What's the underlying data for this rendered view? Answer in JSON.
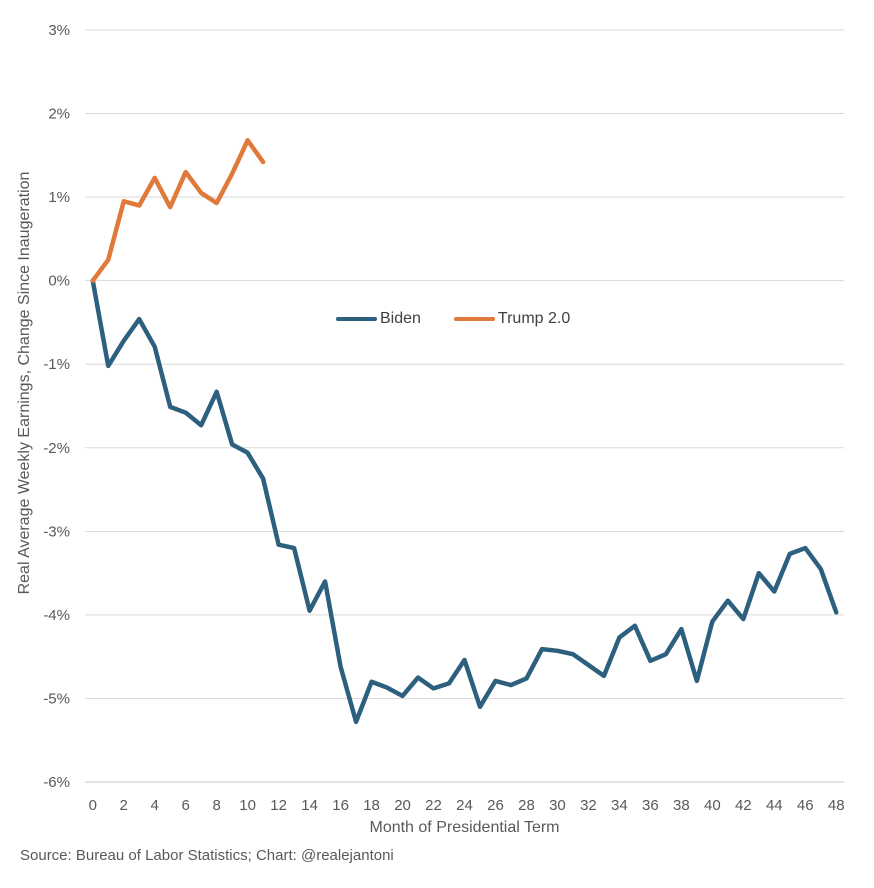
{
  "chart_data": {
    "type": "line",
    "title": "",
    "xlabel": "Month of Presidential Term",
    "ylabel": "Real Average Weekly Earnings, Change Since Inaugeration",
    "ylim": [
      -6,
      3
    ],
    "grid": true,
    "grid_color": "#d9d9d9",
    "axis_line_color": "#c6c6c6",
    "text_color": "#595959",
    "legend_text_color": "#404040",
    "legend_position": "inside-center",
    "yticks": [
      {
        "v": 3,
        "label": "3%"
      },
      {
        "v": 2,
        "label": "2%"
      },
      {
        "v": 1,
        "label": "1%"
      },
      {
        "v": 0,
        "label": "0%"
      },
      {
        "v": -1,
        "label": "-1%"
      },
      {
        "v": -2,
        "label": "-2%"
      },
      {
        "v": -3,
        "label": "-3%"
      },
      {
        "v": -4,
        "label": "-4%"
      },
      {
        "v": -5,
        "label": "-5%"
      },
      {
        "v": -6,
        "label": "-6%"
      }
    ],
    "xticks": [
      {
        "v": 0,
        "label": "0"
      },
      {
        "v": 2,
        "label": "2"
      },
      {
        "v": 4,
        "label": "4"
      },
      {
        "v": 6,
        "label": "6"
      },
      {
        "v": 8,
        "label": "8"
      },
      {
        "v": 10,
        "label": "10"
      },
      {
        "v": 12,
        "label": "12"
      },
      {
        "v": 14,
        "label": "14"
      },
      {
        "v": 16,
        "label": "16"
      },
      {
        "v": 18,
        "label": "18"
      },
      {
        "v": 20,
        "label": "20"
      },
      {
        "v": 22,
        "label": "22"
      },
      {
        "v": 24,
        "label": "24"
      },
      {
        "v": 26,
        "label": "26"
      },
      {
        "v": 28,
        "label": "28"
      },
      {
        "v": 30,
        "label": "30"
      },
      {
        "v": 32,
        "label": "32"
      },
      {
        "v": 34,
        "label": "34"
      },
      {
        "v": 36,
        "label": "36"
      },
      {
        "v": 38,
        "label": "38"
      },
      {
        "v": 40,
        "label": "40"
      },
      {
        "v": 42,
        "label": "42"
      },
      {
        "v": 44,
        "label": "44"
      },
      {
        "v": 46,
        "label": "46"
      },
      {
        "v": 48,
        "label": "48"
      }
    ],
    "series": [
      {
        "name": "Biden",
        "color": "#2d5f7e",
        "months": [
          0,
          1,
          2,
          3,
          4,
          5,
          6,
          7,
          8,
          9,
          10,
          11,
          12,
          13,
          14,
          15,
          16,
          17,
          18,
          19,
          20,
          21,
          22,
          23,
          24,
          25,
          26,
          27,
          28,
          29,
          30,
          31,
          32,
          33,
          34,
          35,
          36,
          37,
          38,
          39,
          40,
          41,
          42,
          43,
          44,
          45,
          46,
          47,
          48
        ],
        "values": [
          0,
          -1.02,
          -0.72,
          -0.46,
          -0.79,
          -1.51,
          -1.58,
          -1.73,
          -1.33,
          -1.96,
          -2.06,
          -2.37,
          -3.16,
          -3.2,
          -3.95,
          -3.6,
          -4.62,
          -5.28,
          -4.8,
          -4.87,
          -4.97,
          -4.75,
          -4.88,
          -4.82,
          -4.54,
          -5.1,
          -4.79,
          -4.84,
          -4.76,
          -4.41,
          -4.43,
          -4.47,
          -4.6,
          -4.73,
          -4.27,
          -4.13,
          -4.55,
          -4.47,
          -4.17,
          -4.79,
          -4.08,
          -3.83,
          -4.05,
          -3.5,
          -3.72,
          -3.27,
          -3.2,
          -3.45,
          -3.97
        ]
      },
      {
        "name": "Trump 2.0",
        "color": "#e0793a",
        "months": [
          0,
          1,
          2,
          3,
          4,
          5,
          6,
          7,
          8,
          9,
          10,
          11
        ],
        "values": [
          0,
          0.25,
          0.95,
          0.9,
          1.23,
          0.88,
          1.3,
          1.05,
          0.93,
          1.28,
          1.68,
          1.42
        ]
      }
    ]
  },
  "footer": {
    "source": "Source: Bureau of Labor Statistics; Chart: @realejantoni"
  }
}
